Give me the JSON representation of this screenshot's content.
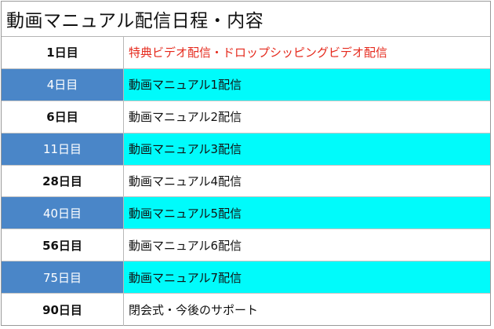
{
  "title": "動画マニュアル配信日程・内容",
  "colors": {
    "day_highlight": "#4a86c8",
    "content_highlight": "#00fbfb",
    "red_text": "#e5291c"
  },
  "rows": [
    {
      "day": "1日目",
      "content": "特典ビデオ配信・ドロップシッピングビデオ配信",
      "highlight": false,
      "red": true
    },
    {
      "day": "4日目",
      "content": "動画マニュアル1配信",
      "highlight": true,
      "red": false
    },
    {
      "day": "6日目",
      "content": "動画マニュアル2配信",
      "highlight": false,
      "red": false
    },
    {
      "day": "11日目",
      "content": "動画マニュアル3配信",
      "highlight": true,
      "red": false
    },
    {
      "day": "28日目",
      "content": "動画マニュアル4配信",
      "highlight": false,
      "red": false
    },
    {
      "day": "40日目",
      "content": "動画マニュアル5配信",
      "highlight": true,
      "red": false
    },
    {
      "day": "56日目",
      "content": "動画マニュアル6配信",
      "highlight": false,
      "red": false
    },
    {
      "day": "75日目",
      "content": "動画マニュアル7配信",
      "highlight": true,
      "red": false
    },
    {
      "day": "90日目",
      "content": "閉会式・今後のサポート",
      "highlight": false,
      "red": false
    }
  ]
}
